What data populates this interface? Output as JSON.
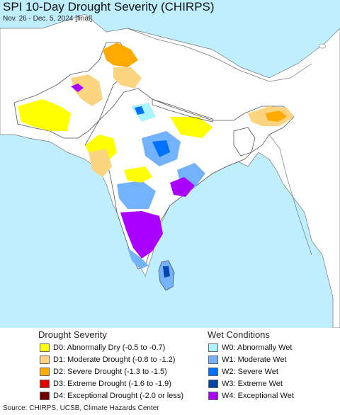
{
  "title": "SPI 10-Day Drought Severity (CHIRPS)",
  "subtitle": "Nov. 26 - Dec. 5, 2024 [final]",
  "colors": {
    "water": "#bfefff",
    "land_outside": "#ffffff",
    "border": "#666666"
  },
  "drought_legend": {
    "heading": "Drought Severity",
    "items": [
      {
        "code": "D0",
        "label": "D0: Abnormally Dry (-0.5 to -0.7)",
        "color": "#ffff00"
      },
      {
        "code": "D1",
        "label": "D1: Moderate Drought (-0.8 to -1.2)",
        "color": "#fcd37f"
      },
      {
        "code": "D2",
        "label": "D2: Severe Drought (-1.3 to -1.5)",
        "color": "#ffaa00"
      },
      {
        "code": "D3",
        "label": "D3: Extreme Drought (-1.6 to -1.9)",
        "color": "#e60000"
      },
      {
        "code": "D4",
        "label": "D4: Exceptional Drought (-2.0 or less)",
        "color": "#730000"
      }
    ]
  },
  "wet_legend": {
    "heading": "Wet Conditions",
    "items": [
      {
        "code": "W0",
        "label": "W0: Abnormally Wet",
        "color": "#aaf5ff"
      },
      {
        "code": "W1",
        "label": "W1: Moderate Wet",
        "color": "#73b2ff"
      },
      {
        "code": "W2",
        "label": "W2: Severe Wet",
        "color": "#0070ff"
      },
      {
        "code": "W3",
        "label": "W3: Extreme Wet",
        "color": "#0044aa"
      },
      {
        "code": "W4",
        "label": "W4: Exceptional Wet",
        "color": "#aa00ff"
      }
    ]
  },
  "source": "Source: CHIRPS, UCSB, Climate Hazards Center"
}
